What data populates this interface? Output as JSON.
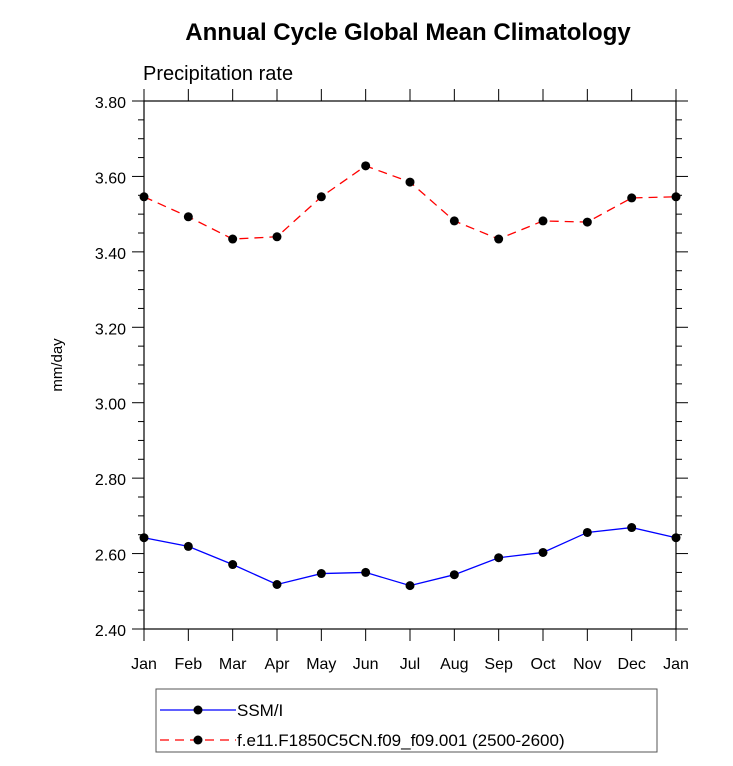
{
  "chart_data": {
    "type": "line",
    "title": "Annual Cycle Global Mean Climatology",
    "subtitle": "Precipitation rate",
    "xlabel": "",
    "ylabel": "mm/day",
    "ylim": [
      2.4,
      3.8
    ],
    "yticks": [
      "2.40",
      "2.60",
      "2.80",
      "3.00",
      "3.20",
      "3.40",
      "3.60",
      "3.80"
    ],
    "ytick_values": [
      2.4,
      2.6,
      2.8,
      3.0,
      3.2,
      3.4,
      3.6,
      3.8
    ],
    "yminor_step": 0.05,
    "categories": [
      "Jan",
      "Feb",
      "Mar",
      "Apr",
      "May",
      "Jun",
      "Jul",
      "Aug",
      "Sep",
      "Oct",
      "Nov",
      "Dec",
      "Jan"
    ],
    "grid": false,
    "legend_position": "bottom",
    "series": [
      {
        "name": "SSM/I",
        "color": "#0000ff",
        "line_style": "solid",
        "marker": "filled-circle",
        "values": [
          2.642,
          2.619,
          2.571,
          2.518,
          2.547,
          2.55,
          2.515,
          2.544,
          2.589,
          2.603,
          2.656,
          2.669,
          2.642
        ]
      },
      {
        "name": "f.e11.F1850C5CN.f09_f09.001 (2500-2600)",
        "color": "#ff0000",
        "line_style": "dashed",
        "marker": "filled-circle",
        "values": [
          3.546,
          3.493,
          3.434,
          3.44,
          3.546,
          3.628,
          3.585,
          3.482,
          3.434,
          3.482,
          3.479,
          3.543,
          3.546
        ]
      }
    ]
  }
}
